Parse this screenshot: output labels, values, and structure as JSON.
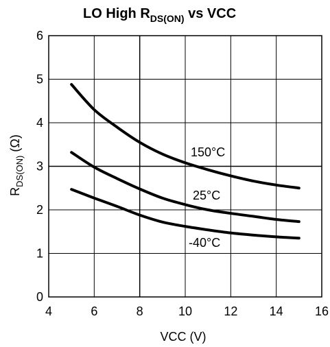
{
  "chart_data": {
    "type": "line",
    "title": {
      "main": "LO High R",
      "sub": "DS(ON)",
      "rest": " vs VCC"
    },
    "xlabel": "VCC (V)",
    "ylabel": {
      "main": "R",
      "sub": "DS(ON)",
      "rest": " (Ω)"
    },
    "xlim": [
      4,
      16
    ],
    "ylim": [
      0,
      6
    ],
    "xticks": [
      "4",
      "6",
      "8",
      "10",
      "12",
      "14",
      "16"
    ],
    "yticks": [
      "0",
      "1",
      "2",
      "3",
      "4",
      "5",
      "6"
    ],
    "grid": true,
    "series": [
      {
        "name": "150°C",
        "x": [
          5,
          6,
          7,
          8,
          9,
          10,
          11,
          12,
          13,
          14,
          15
        ],
        "y": [
          4.88,
          4.3,
          3.9,
          3.55,
          3.28,
          3.08,
          2.92,
          2.78,
          2.66,
          2.57,
          2.5
        ]
      },
      {
        "name": "25°C",
        "x": [
          5,
          6,
          7,
          8,
          9,
          10,
          11,
          12,
          13,
          14,
          15
        ],
        "y": [
          3.32,
          2.98,
          2.72,
          2.48,
          2.27,
          2.12,
          2.0,
          1.92,
          1.85,
          1.78,
          1.73
        ]
      },
      {
        "name": "-40°C",
        "x": [
          5,
          6,
          7,
          8,
          9,
          10,
          11,
          12,
          13,
          14,
          15
        ],
        "y": [
          2.47,
          2.27,
          2.08,
          1.88,
          1.72,
          1.62,
          1.54,
          1.47,
          1.42,
          1.38,
          1.35
        ]
      }
    ]
  }
}
